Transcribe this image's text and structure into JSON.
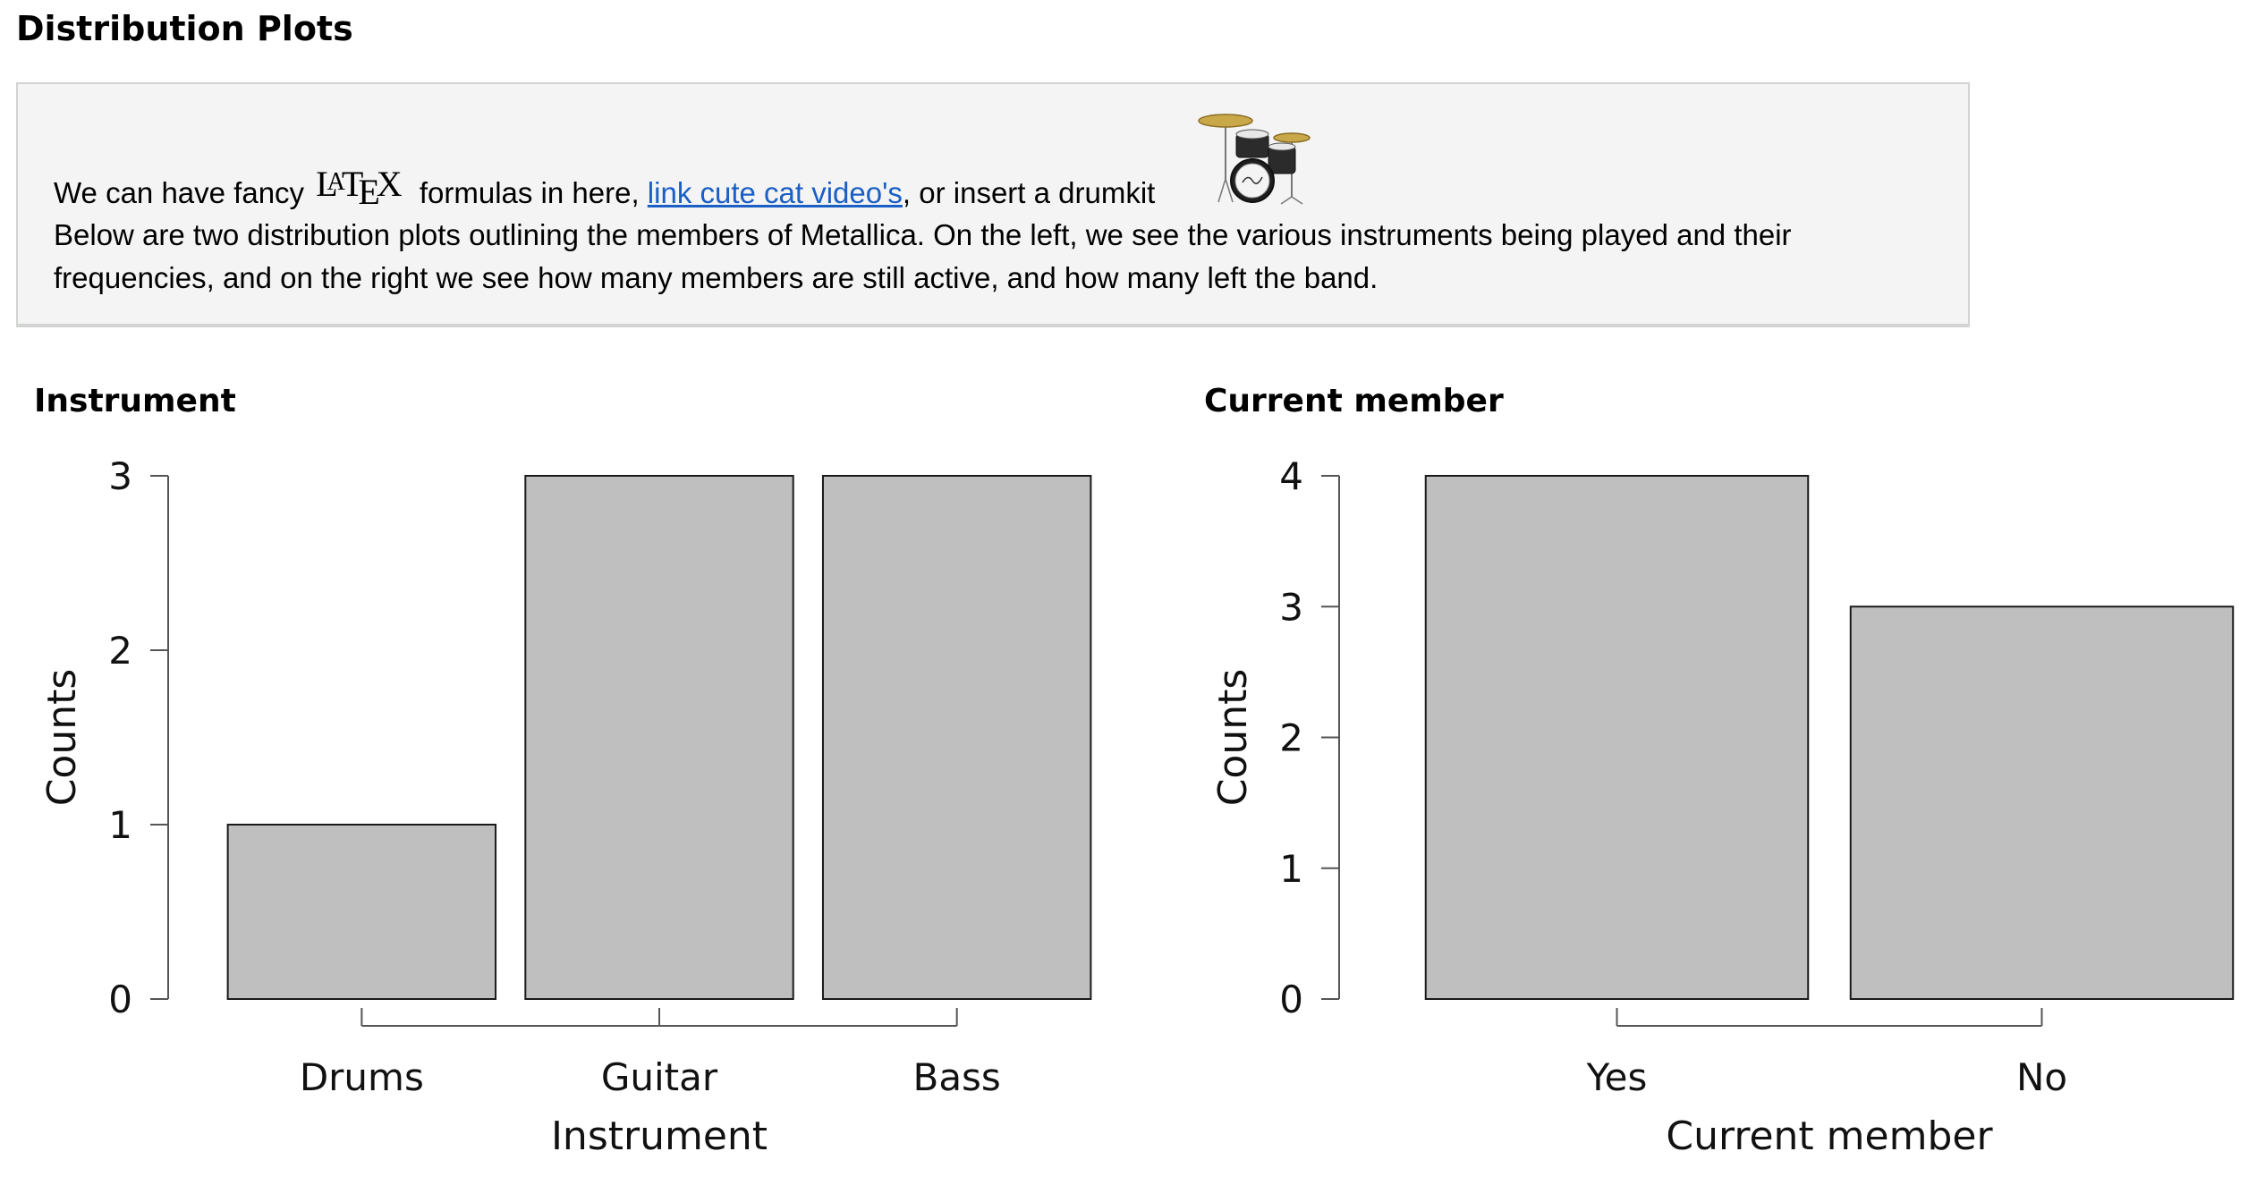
{
  "page": {
    "title": "Distribution Plots"
  },
  "note": {
    "line1_before": "We can have fancy",
    "latex_symbol": "LaTeX",
    "line1_middle": "formulas in here,",
    "link_text": "link cute cat video's",
    "line1_after": ", or insert a drumkit",
    "drumkit_icon": "drumkit-image",
    "line2": "Below are two distribution plots outlining the members of Metallica. On the left, we see the various instruments being played and their",
    "line3": "frequencies, and on the right we see how many members are still active, and how many left the band."
  },
  "colors": {
    "bar_fill": "#bfbfbf",
    "bar_stroke": "#1a1a1a",
    "axis": "#555555",
    "link": "#1a5fc5",
    "note_background": "#f3f4f3"
  },
  "chart_data": [
    {
      "type": "bar",
      "title": "Instrument",
      "categories": [
        "Drums",
        "Guitar",
        "Bass"
      ],
      "values": [
        1,
        3,
        3
      ],
      "xlabel": "Instrument",
      "ylabel": "Counts",
      "ylim": [
        0,
        3
      ],
      "yticks": [
        0,
        1,
        2,
        3
      ],
      "grid": false
    },
    {
      "type": "bar",
      "title": "Current member",
      "categories": [
        "Yes",
        "No"
      ],
      "values": [
        4,
        3
      ],
      "xlabel": "Current member",
      "ylabel": "Counts",
      "ylim": [
        0,
        4
      ],
      "yticks": [
        0,
        1,
        2,
        3,
        4
      ],
      "grid": false
    }
  ]
}
